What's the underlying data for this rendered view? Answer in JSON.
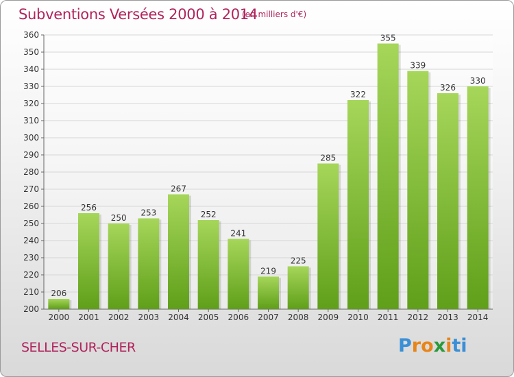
{
  "title": "Subventions Versées 2000 à 2014",
  "subtitle": "(en milliers d'€)",
  "town": "SELLES-SUR-CHER",
  "logo": {
    "text": "Proxiti",
    "colors": [
      "#3a8fd6",
      "#e8851a",
      "#e8851a",
      "#2a9a3a",
      "#e8851a",
      "#3a8fd6",
      "#3a8fd6"
    ]
  },
  "colors": {
    "title": "#b0245c",
    "bar_top": "#a6d65a",
    "bar_bottom": "#5f9f19"
  },
  "chart_data": {
    "type": "bar",
    "categories": [
      "2000",
      "2001",
      "2002",
      "2003",
      "2004",
      "2005",
      "2006",
      "2007",
      "2008",
      "2009",
      "2010",
      "2011",
      "2012",
      "2013",
      "2014"
    ],
    "values": [
      206,
      256,
      250,
      253,
      267,
      252,
      241,
      219,
      225,
      285,
      322,
      355,
      339,
      326,
      330
    ],
    "ylim": [
      200,
      360
    ],
    "yticks": [
      200,
      210,
      220,
      230,
      240,
      250,
      260,
      270,
      280,
      290,
      300,
      310,
      320,
      330,
      340,
      350,
      360
    ],
    "grid": true,
    "data_labels": true
  }
}
